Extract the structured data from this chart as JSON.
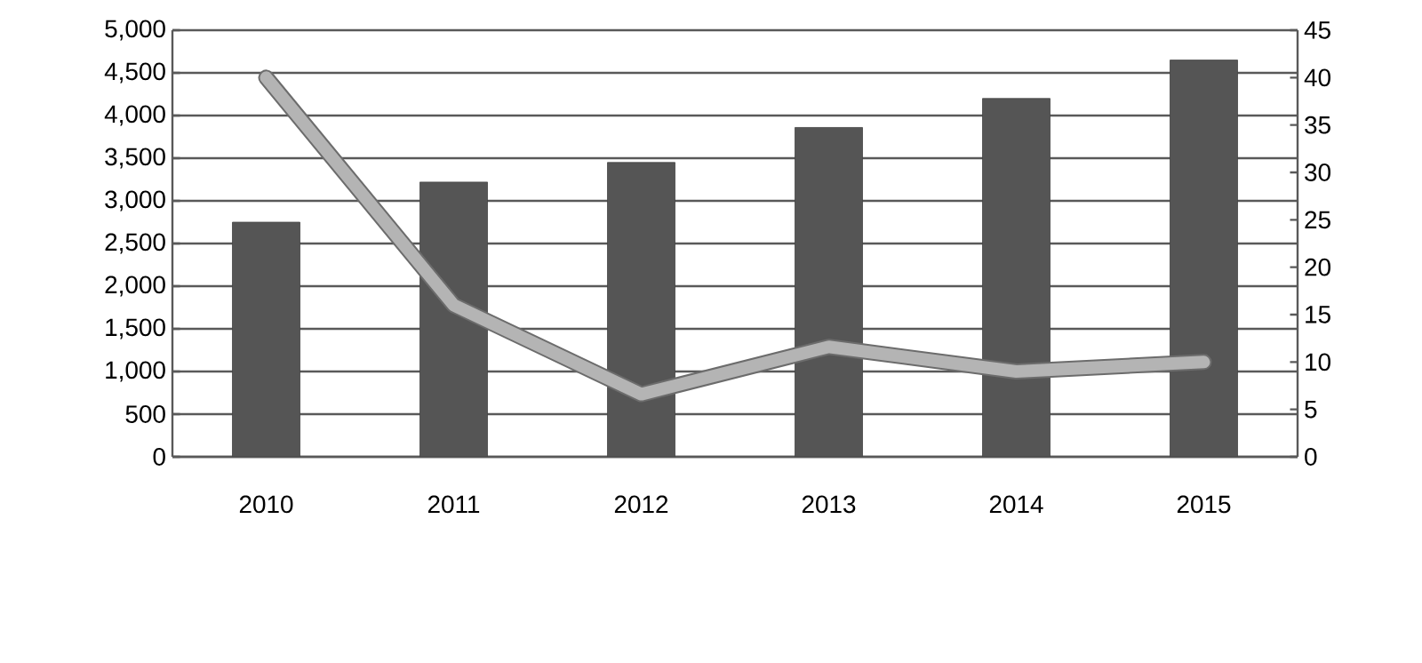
{
  "chart_data": {
    "type": "bar",
    "categories": [
      "2010",
      "2011",
      "2012",
      "2013",
      "2014",
      "2015"
    ],
    "series": [
      {
        "color": "#555555",
        "values": [
          2750,
          3220,
          3450,
          3860,
          4200,
          4650
        ]
      },
      {
        "type": "line",
        "axis": "y2",
        "color": "#b4b4b4",
        "values": [
          40,
          16,
          6.6,
          11.6,
          9,
          10
        ]
      }
    ],
    "ylim": [
      0,
      5000
    ],
    "yticks": [
      {
        "value": 0,
        "label": "0"
      },
      {
        "value": 500,
        "label": "500"
      },
      {
        "value": 1000,
        "label": "1,000"
      },
      {
        "value": 1500,
        "label": "1,500"
      },
      {
        "value": 2000,
        "label": "2,000"
      },
      {
        "value": 2500,
        "label": "2,500"
      },
      {
        "value": 3000,
        "label": "3,000"
      },
      {
        "value": 3500,
        "label": "3,500"
      },
      {
        "value": 4000,
        "label": "4,000"
      },
      {
        "value": 4500,
        "label": "4,500"
      },
      {
        "value": 5000,
        "label": "5,000"
      }
    ],
    "y2lim": [
      0,
      45
    ],
    "y2ticks": [
      0,
      5,
      10,
      15,
      20,
      25,
      30,
      35,
      40,
      45
    ],
    "grid": "y"
  }
}
